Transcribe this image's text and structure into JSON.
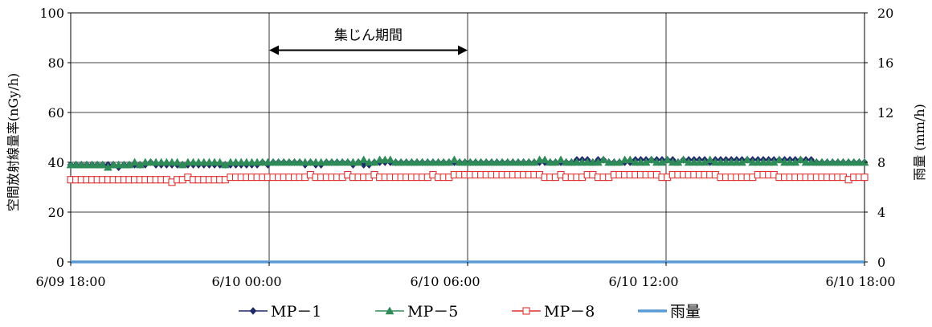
{
  "chart_data": {
    "type": "line",
    "title": "",
    "ylabel_left": "空間放射線量率(nGy/h)",
    "ylabel_right": "雨量 (mm/h)",
    "ylim_left": [
      0,
      100
    ],
    "ylim_right": [
      0,
      20
    ],
    "yticks_left": [
      "0",
      "20",
      "40",
      "60",
      "80",
      "100"
    ],
    "yticks_right": [
      "0",
      "4",
      "8",
      "12",
      "16",
      "20"
    ],
    "x_range": [
      "6/09 18:00",
      "6/10 18:00"
    ],
    "xtick_labels": [
      "6/09 18:00",
      "6/10 00:00",
      "6/10 06:00",
      "6/10 12:00",
      "6/10 18:00"
    ],
    "grid": "vertical lines at 6-hour ticks and horizontal lines at 20 nGy/h steps",
    "annotation": {
      "text": "集じん期間",
      "from": "6/10 00:00",
      "to": "6/10 06:00",
      "y": 85
    },
    "legend_position": "bottom",
    "series": [
      {
        "name": "MP－1",
        "axis": "left",
        "color": "#1f2a6b",
        "marker": "diamond-filled",
        "interval_minutes": 10,
        "values": [
          39,
          39,
          39,
          39,
          39,
          39,
          39,
          39,
          39,
          38,
          39,
          39,
          39,
          39,
          39,
          40,
          39,
          39,
          39,
          39,
          39,
          39,
          39,
          39,
          39,
          39,
          39,
          39,
          39,
          39,
          39,
          39,
          39,
          39,
          39,
          39,
          40,
          39,
          40,
          40,
          40,
          40,
          40,
          40,
          39,
          40,
          39,
          39,
          40,
          40,
          40,
          40,
          40,
          39,
          40,
          39,
          39,
          40,
          40,
          40,
          40,
          40,
          40,
          40,
          40,
          40,
          40,
          40,
          40,
          40,
          40,
          40,
          40,
          40,
          40,
          40,
          40,
          40,
          40,
          40,
          40,
          40,
          40,
          40,
          40,
          40,
          40,
          40,
          40,
          40,
          40,
          40,
          40,
          40,
          40,
          41,
          41,
          41,
          40,
          41,
          41,
          40,
          40,
          40,
          40,
          40,
          41,
          41,
          41,
          41,
          41,
          41,
          41,
          41,
          40,
          41,
          41,
          41,
          41,
          41,
          40,
          41,
          41,
          41,
          41,
          41,
          41,
          41,
          41,
          41,
          41,
          41,
          41,
          41,
          41,
          41,
          41,
          41,
          41,
          41,
          40,
          40,
          40,
          40,
          40,
          40,
          40,
          40,
          40,
          40
        ]
      },
      {
        "name": "MP－5",
        "axis": "left",
        "color": "#2e8b57",
        "marker": "triangle-filled",
        "interval_minutes": 10,
        "values": [
          39,
          39,
          39,
          39,
          39,
          39,
          39,
          38,
          39,
          39,
          39,
          39,
          40,
          39,
          40,
          40,
          40,
          40,
          40,
          40,
          40,
          39,
          40,
          40,
          40,
          40,
          40,
          40,
          40,
          39,
          40,
          40,
          40,
          40,
          40,
          40,
          40,
          40,
          40,
          40,
          40,
          40,
          40,
          40,
          40,
          40,
          40,
          40,
          40,
          40,
          40,
          40,
          40,
          40,
          40,
          41,
          40,
          40,
          41,
          41,
          41,
          40,
          40,
          40,
          40,
          40,
          40,
          40,
          40,
          40,
          40,
          40,
          41,
          40,
          40,
          40,
          40,
          40,
          40,
          40,
          40,
          40,
          40,
          40,
          40,
          40,
          40,
          40,
          41,
          41,
          40,
          40,
          41,
          40,
          40,
          40,
          40,
          40,
          40,
          40,
          41,
          40,
          40,
          40,
          41,
          41,
          40,
          40,
          40,
          41,
          40,
          40,
          41,
          40,
          40,
          41,
          40,
          40,
          40,
          40,
          41,
          40,
          40,
          40,
          40,
          40,
          40,
          41,
          40,
          40,
          40,
          40,
          40,
          41,
          40,
          40,
          40,
          41,
          40,
          40,
          40,
          40,
          40,
          40,
          40,
          40,
          40,
          40,
          40,
          40
        ]
      },
      {
        "name": "MP－8",
        "axis": "left",
        "color": "#e03030",
        "marker": "square-open",
        "interval_minutes": 10,
        "values": [
          33,
          33,
          33,
          33,
          33,
          33,
          33,
          33,
          33,
          33,
          33,
          33,
          33,
          33,
          33,
          33,
          33,
          33,
          33,
          32,
          33,
          33,
          34,
          33,
          33,
          33,
          33,
          33,
          33,
          33,
          34,
          34,
          34,
          34,
          34,
          34,
          34,
          34,
          34,
          34,
          34,
          34,
          34,
          34,
          34,
          35,
          34,
          34,
          34,
          34,
          34,
          34,
          35,
          34,
          34,
          34,
          34,
          35,
          34,
          34,
          34,
          34,
          34,
          34,
          34,
          34,
          34,
          34,
          35,
          34,
          34,
          34,
          35,
          35,
          35,
          35,
          35,
          35,
          35,
          35,
          35,
          35,
          35,
          35,
          35,
          35,
          35,
          35,
          35,
          34,
          34,
          34,
          35,
          34,
          34,
          34,
          34,
          35,
          35,
          34,
          34,
          34,
          35,
          35,
          35,
          35,
          35,
          35,
          35,
          35,
          35,
          34,
          34,
          35,
          35,
          35,
          35,
          35,
          35,
          35,
          35,
          35,
          34,
          34,
          34,
          34,
          34,
          34,
          34,
          35,
          35,
          35,
          35,
          34,
          34,
          34,
          34,
          34,
          34,
          34,
          34,
          34,
          34,
          34,
          34,
          34,
          33,
          34,
          34,
          34
        ]
      },
      {
        "name": "雨量",
        "axis": "right",
        "color": "#5b9bd5",
        "marker": "none",
        "interval_minutes": 60,
        "values": [
          0,
          0,
          0,
          0,
          0,
          0,
          0,
          0,
          0,
          0,
          0,
          0,
          0,
          0,
          0,
          0,
          0,
          0,
          0,
          0,
          0,
          0,
          0,
          0,
          0
        ]
      }
    ]
  }
}
